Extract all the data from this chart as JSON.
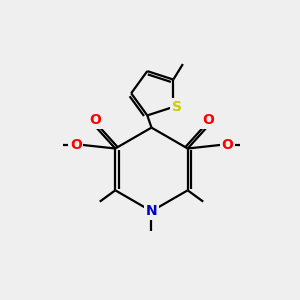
{
  "bg_color": "#efefef",
  "bond_color": "#000000",
  "N_color": "#0000cc",
  "O_color": "#ff0000",
  "S_color": "#cccc00",
  "line_width": 1.6,
  "figsize": [
    3.0,
    3.0
  ],
  "dpi": 100,
  "xlim": [
    0,
    10
  ],
  "ylim": [
    0,
    10
  ]
}
